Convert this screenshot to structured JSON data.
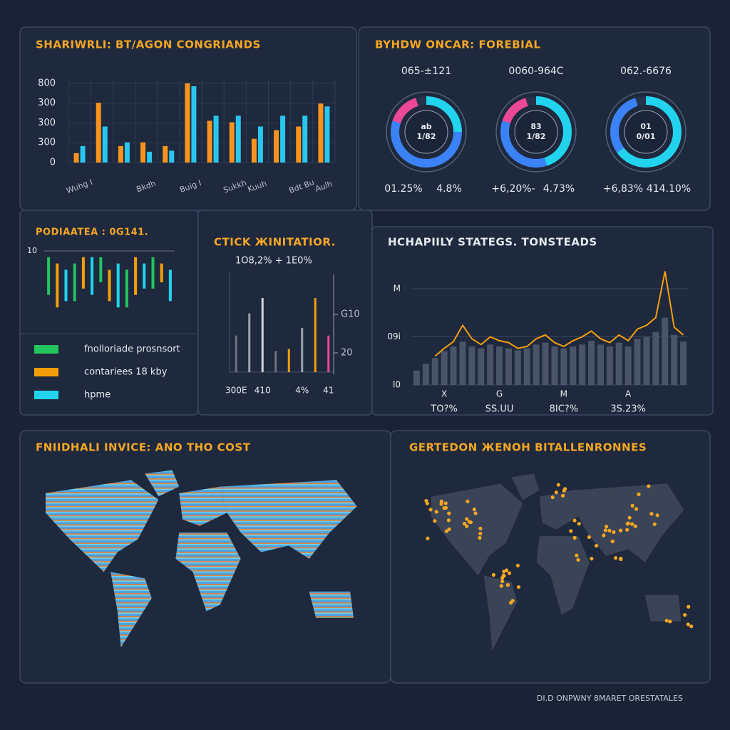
{
  "chart_data": [
    {
      "type": "bar",
      "title": "SHARIWRLI: BT/AGON CONGRIANDS",
      "categories": [
        "Wuhg I",
        null,
        null,
        "Bkdh",
        null,
        "Buig I",
        null,
        "Sukkh",
        "Kuuh",
        null,
        "Bdt Bu",
        "Aulh"
      ],
      "series": [
        {
          "color": "#f7931e",
          "values": [
            95,
            604,
            167,
            204,
            167,
            800,
            422,
            407,
            240,
            327,
            364,
            596
          ]
        },
        {
          "color": "#29c6f0",
          "values": [
            167,
            364,
            204,
            109,
            120,
            771,
            473,
            473,
            364,
            473,
            473,
            567
          ]
        }
      ],
      "ylim": [
        0,
        850
      ],
      "yticks": [
        0,
        {
          "value": 200,
          "label": "300"
        },
        {
          "value": 400,
          "label": "300"
        },
        {
          "value": 600,
          "label": "300"
        },
        800
      ],
      "grid": true
    },
    {
      "type": "donut",
      "title": "BYHDW ONCAR: FOREBIAL",
      "donuts": [
        {
          "label": "065-±121",
          "center": [
            "ab",
            "1/82"
          ],
          "captions": [
            "01.25%",
            "4.8%"
          ],
          "values": [
            25,
            55,
            15
          ],
          "colors": [
            "#22d3ee",
            "#3b82f6",
            "#ec4899"
          ]
        },
        {
          "label": "0060-964C",
          "center": [
            "83",
            "1/82"
          ],
          "captions": [
            "+6,20%-",
            "4.73%"
          ],
          "values": [
            45,
            35,
            15
          ],
          "colors": [
            "#22d3ee",
            "#3b82f6",
            "#ec4899"
          ]
        },
        {
          "label": "062.-6676",
          "center": [
            "01",
            "0/01"
          ],
          "captions": [
            "+6,83%",
            "414.10%"
          ],
          "values": [
            65,
            30
          ],
          "colors": [
            "#22d3ee",
            "#3b82f6"
          ]
        }
      ]
    },
    {
      "type": "range",
      "title": "PODIAATEA : 0G141.",
      "ylim": [
        0,
        10
      ],
      "yticks": [
        10
      ],
      "series": [
        {
          "name": "fnolloriade prosnsort",
          "color": "#22c55e",
          "lows": [
            3,
            2,
            5,
            1,
            4
          ],
          "highs": [
            9,
            8,
            9,
            7,
            9
          ]
        },
        {
          "name": "contariees 18 kby",
          "color": "#f59e0b",
          "lows": [
            1,
            4,
            2,
            3,
            5
          ],
          "highs": [
            8,
            9,
            7,
            9,
            8
          ]
        },
        {
          "name": "hpme",
          "color": "#22d3ee",
          "lows": [
            2,
            3,
            1,
            4,
            2
          ],
          "highs": [
            7,
            9,
            8,
            8,
            7
          ]
        }
      ]
    },
    {
      "type": "bar",
      "title": "CTICK ЖINITATIOR.",
      "subtitle": "1O8,2% + 1E0%",
      "categories": [
        "300E",
        null,
        "410",
        null,
        null,
        "4%",
        null,
        "41"
      ],
      "values": [
        38,
        61,
        77,
        22,
        24,
        46,
        77,
        38
      ],
      "colors": [
        "#6b7280",
        "#9ca3af",
        "#d1d5db",
        "#6b7280",
        "#f59e0b",
        "#9ca3af",
        "#f59e0b",
        "#ec4899"
      ],
      "ylim": [
        0,
        100
      ],
      "yticks": [
        20,
        {
          "value": 60,
          "label": "G10"
        }
      ]
    },
    {
      "type": "combo",
      "title": "HCHAPIILY STATEGS. TONSTEADS",
      "categories": [
        null,
        null,
        null,
        "X",
        null,
        null,
        null,
        null,
        null,
        "G",
        null,
        null,
        null,
        null,
        null,
        null,
        "M",
        null,
        null,
        null,
        null,
        null,
        null,
        "A",
        null,
        null,
        null,
        null,
        null,
        null
      ],
      "footnotes": [
        "TO?%",
        "SS.UU",
        "8IC?%",
        "3S.23%"
      ],
      "bar_color": "#4a5468",
      "line_color": "#f59e0b",
      "bars": [
        15,
        22,
        28,
        35,
        40,
        45,
        40,
        38,
        42,
        40,
        38,
        36,
        38,
        42,
        44,
        40,
        38,
        40,
        42,
        46,
        42,
        40,
        44,
        40,
        48,
        50,
        55,
        70,
        52,
        45
      ],
      "values": [
        null,
        null,
        30,
        38,
        45,
        62,
        48,
        42,
        50,
        46,
        44,
        38,
        40,
        48,
        52,
        44,
        40,
        46,
        50,
        56,
        48,
        44,
        52,
        46,
        58,
        62,
        70,
        118,
        60,
        52
      ],
      "ylim": [
        0,
        120
      ],
      "yticks": [
        {
          "value": 0,
          "label": "l0"
        },
        {
          "value": 50,
          "label": "09i"
        },
        {
          "value": 100,
          "label": "M"
        }
      ],
      "grid": true
    }
  ],
  "maps": [
    {
      "title": "FNIIDHALI INVICE: ANO THO COST"
    },
    {
      "title": "GERTEDON ЖENOH BITALLENRONNES"
    }
  ],
  "footer": "DI.D ONPWNY 8MARET ORESTATALES"
}
